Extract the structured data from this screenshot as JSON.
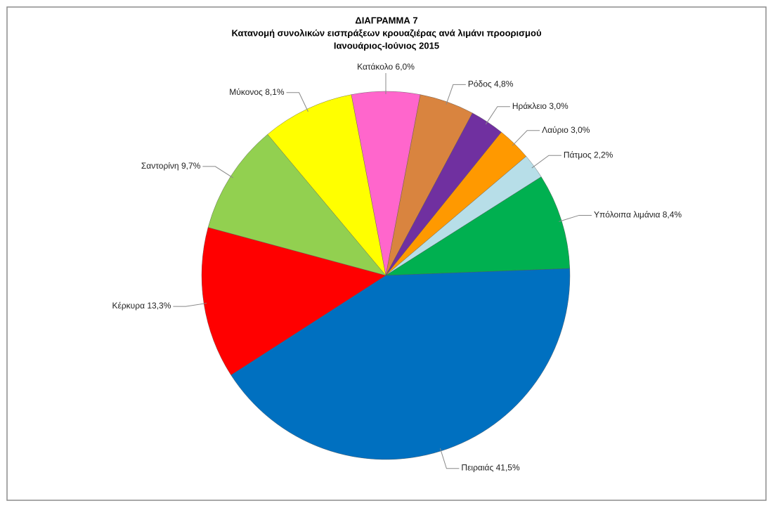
{
  "chart_data": {
    "type": "pie",
    "title": [
      "ΔΙΑΓΡΑΜΜΑ 7",
      "Κατανομή συνολικών εισπράξεων κρουαζιέρας ανά  λιμάνι προορισμού",
      "Ιανουάριος-Ιούνιος 2015"
    ],
    "categories": [
      "Κατάκολο",
      "Ρόδος",
      "Ηράκλειο",
      "Λαύριο",
      "Πάτμος",
      "Υπόλοιπα λιμάνια",
      "Πειραιάς",
      "Κέρκυρα",
      "Σαντορίνη",
      "Μύκονος"
    ],
    "values": [
      6.0,
      4.8,
      3.0,
      3.0,
      2.2,
      8.4,
      41.5,
      13.3,
      9.7,
      8.1
    ],
    "value_labels": [
      "6,0%",
      "4,8%",
      "3,0%",
      "3,0%",
      "2,2%",
      "8,4%",
      "41,5%",
      "13,3%",
      "9,7%",
      "8,1%"
    ],
    "colors": [
      "#ff66cc",
      "#d9843f",
      "#7030a0",
      "#ff9900",
      "#b7dee8",
      "#00b050",
      "#0070c0",
      "#ff0000",
      "#92d050",
      "#ffff00"
    ]
  }
}
